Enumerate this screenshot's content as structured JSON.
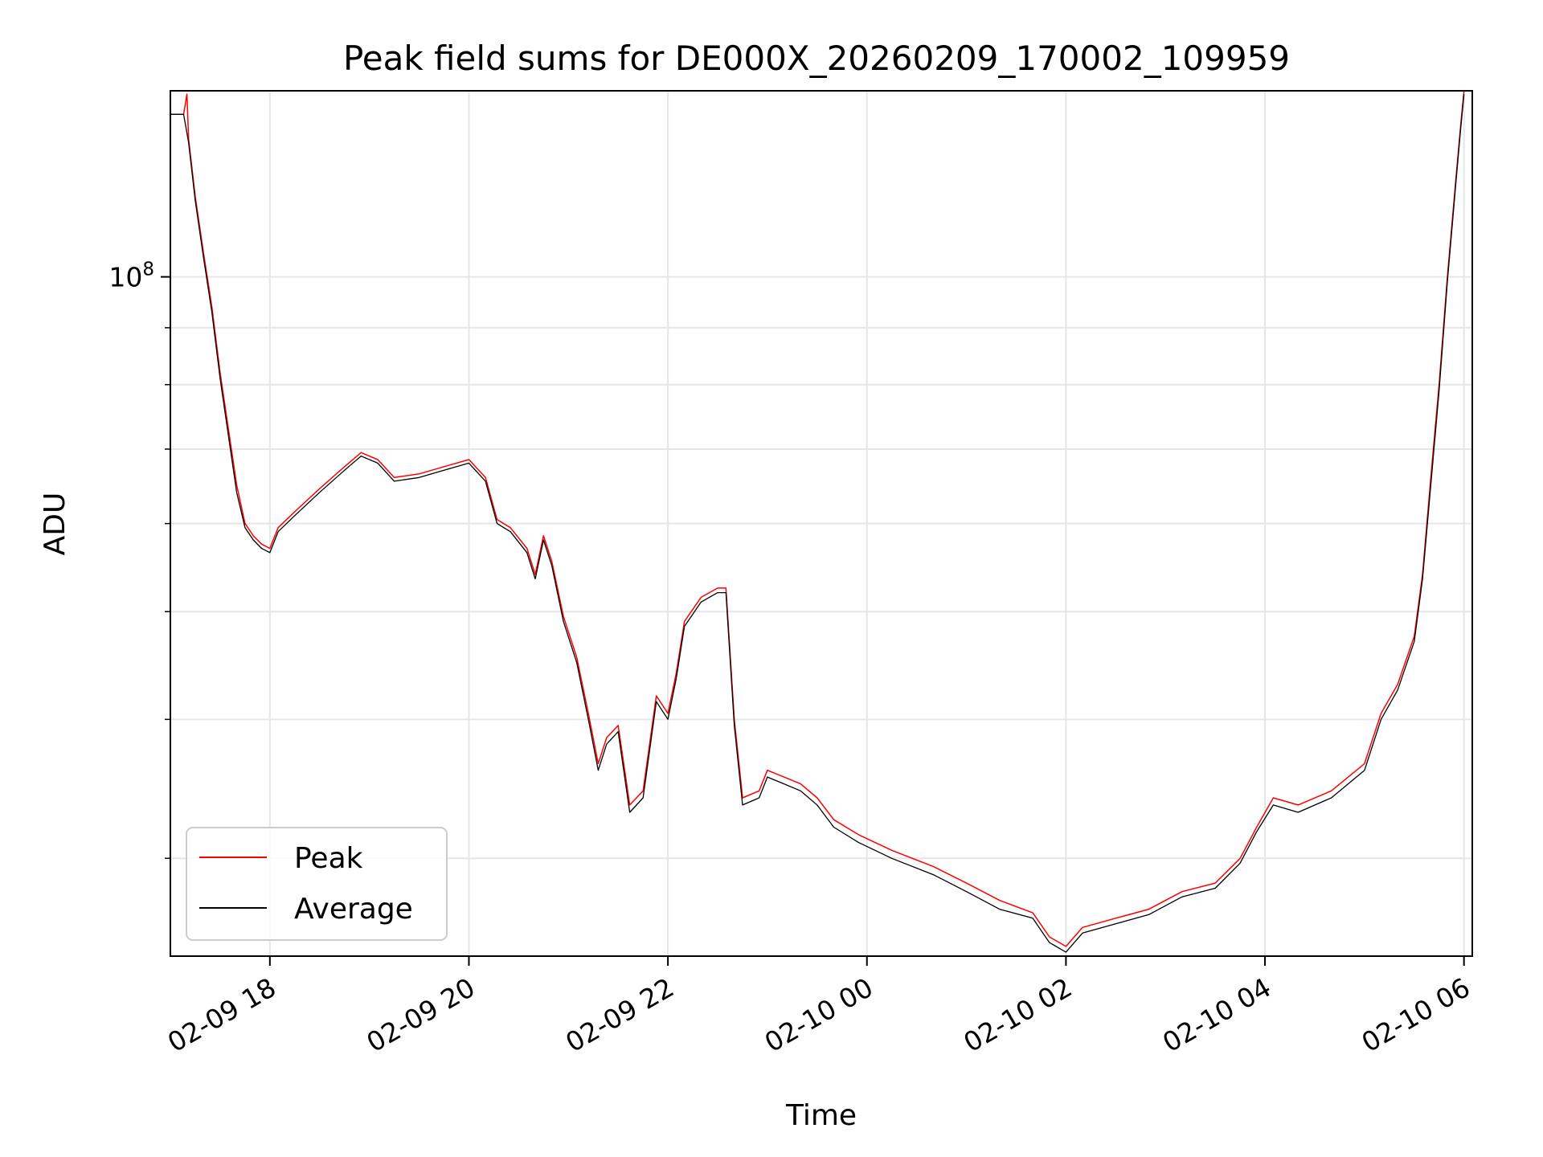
{
  "chart_data": {
    "type": "line",
    "title": "Peak field sums for DE000X_20260209_170002_109959",
    "xlabel": "Time",
    "ylabel": "ADU",
    "yscale": "log",
    "xlim": [
      "2026-02-09 17:00",
      "2026-02-10 06:05"
    ],
    "ylim": [
      24500000,
      147000000
    ],
    "x_ticks": [
      {
        "t": "2026-02-09 18:00",
        "label": "02-09 18"
      },
      {
        "t": "2026-02-09 20:00",
        "label": "02-09 20"
      },
      {
        "t": "2026-02-09 22:00",
        "label": "02-09 22"
      },
      {
        "t": "2026-02-10 00:00",
        "label": "02-10 00"
      },
      {
        "t": "2026-02-10 02:00",
        "label": "02-10 02"
      },
      {
        "t": "2026-02-10 04:00",
        "label": "02-10 04"
      },
      {
        "t": "2026-02-10 06:00",
        "label": "02-10 06"
      }
    ],
    "y_major_tick": {
      "value": 100000000,
      "label_base": "10",
      "label_exp": "8"
    },
    "y_minor_ticks": [
      30000000,
      40000000,
      50000000,
      60000000,
      70000000,
      80000000,
      90000000,
      200000000
    ],
    "grid": true,
    "legend_position": "lower-left",
    "series": [
      {
        "name": "Peak",
        "color": "#ff0000",
        "points": [
          [
            "2026-02-09 17:00",
            140000000
          ],
          [
            "2026-02-09 17:08",
            140000000
          ],
          [
            "2026-02-09 17:10",
            146000000
          ],
          [
            "2026-02-09 17:11",
            133000000
          ],
          [
            "2026-02-09 17:15",
            118000000
          ],
          [
            "2026-02-09 17:20",
            105000000
          ],
          [
            "2026-02-09 17:25",
            94000000
          ],
          [
            "2026-02-09 17:30",
            82000000
          ],
          [
            "2026-02-09 17:35",
            73000000
          ],
          [
            "2026-02-09 17:40",
            65000000
          ],
          [
            "2026-02-09 17:45",
            60000000
          ],
          [
            "2026-02-09 17:50",
            58500000
          ],
          [
            "2026-02-09 17:55",
            57500000
          ],
          [
            "2026-02-09 18:00",
            57000000
          ],
          [
            "2026-02-09 18:05",
            59500000
          ],
          [
            "2026-02-09 18:15",
            61500000
          ],
          [
            "2026-02-09 18:30",
            64500000
          ],
          [
            "2026-02-09 18:45",
            67500000
          ],
          [
            "2026-02-09 18:55",
            69500000
          ],
          [
            "2026-02-09 19:05",
            68500000
          ],
          [
            "2026-02-09 19:15",
            66000000
          ],
          [
            "2026-02-09 19:30",
            66500000
          ],
          [
            "2026-02-09 19:45",
            67500000
          ],
          [
            "2026-02-09 20:00",
            68500000
          ],
          [
            "2026-02-09 20:10",
            66000000
          ],
          [
            "2026-02-09 20:17",
            60500000
          ],
          [
            "2026-02-09 20:25",
            59500000
          ],
          [
            "2026-02-09 20:35",
            57000000
          ],
          [
            "2026-02-09 20:40",
            54000000
          ],
          [
            "2026-02-09 20:45",
            58500000
          ],
          [
            "2026-02-09 20:50",
            55500000
          ],
          [
            "2026-02-09 20:57",
            49500000
          ],
          [
            "2026-02-09 21:05",
            45500000
          ],
          [
            "2026-02-09 21:12",
            40500000
          ],
          [
            "2026-02-09 21:18",
            36500000
          ],
          [
            "2026-02-09 21:23",
            38500000
          ],
          [
            "2026-02-09 21:30",
            39500000
          ],
          [
            "2026-02-09 21:37",
            33500000
          ],
          [
            "2026-02-09 21:45",
            34500000
          ],
          [
            "2026-02-09 21:53",
            42000000
          ],
          [
            "2026-02-09 22:00",
            40500000
          ],
          [
            "2026-02-09 22:05",
            44000000
          ],
          [
            "2026-02-09 22:10",
            49000000
          ],
          [
            "2026-02-09 22:20",
            51500000
          ],
          [
            "2026-02-09 22:30",
            52500000
          ],
          [
            "2026-02-09 22:35",
            52500000
          ],
          [
            "2026-02-09 22:40",
            40000000
          ],
          [
            "2026-02-09 22:45",
            34000000
          ],
          [
            "2026-02-09 22:55",
            34500000
          ],
          [
            "2026-02-09 23:00",
            36000000
          ],
          [
            "2026-02-09 23:10",
            35500000
          ],
          [
            "2026-02-09 23:20",
            35000000
          ],
          [
            "2026-02-09 23:30",
            34000000
          ],
          [
            "2026-02-09 23:40",
            32500000
          ],
          [
            "2026-02-09 23:55",
            31500000
          ],
          [
            "2026-02-10 00:15",
            30500000
          ],
          [
            "2026-02-10 00:40",
            29500000
          ],
          [
            "2026-02-10 01:00",
            28500000
          ],
          [
            "2026-02-10 01:20",
            27500000
          ],
          [
            "2026-02-10 01:40",
            26800000
          ],
          [
            "2026-02-10 01:50",
            25500000
          ],
          [
            "2026-02-10 02:00",
            25000000
          ],
          [
            "2026-02-10 02:10",
            26000000
          ],
          [
            "2026-02-10 02:30",
            26500000
          ],
          [
            "2026-02-10 02:50",
            27000000
          ],
          [
            "2026-02-10 03:10",
            28000000
          ],
          [
            "2026-02-10 03:30",
            28500000
          ],
          [
            "2026-02-10 03:45",
            30000000
          ],
          [
            "2026-02-10 03:55",
            32000000
          ],
          [
            "2026-02-10 04:05",
            34000000
          ],
          [
            "2026-02-10 04:20",
            33500000
          ],
          [
            "2026-02-10 04:40",
            34500000
          ],
          [
            "2026-02-10 05:00",
            36500000
          ],
          [
            "2026-02-10 05:10",
            40500000
          ],
          [
            "2026-02-10 05:20",
            43000000
          ],
          [
            "2026-02-10 05:30",
            47500000
          ],
          [
            "2026-02-10 05:35",
            54000000
          ],
          [
            "2026-02-10 05:40",
            66000000
          ],
          [
            "2026-02-10 05:45",
            80000000
          ],
          [
            "2026-02-10 05:50",
            100000000
          ],
          [
            "2026-02-10 05:55",
            122000000
          ],
          [
            "2026-02-10 05:58",
            137000000
          ],
          [
            "2026-02-10 06:00",
            147000000
          ]
        ]
      },
      {
        "name": "Average",
        "color": "#000000",
        "points": [
          [
            "2026-02-09 17:00",
            140000000
          ],
          [
            "2026-02-09 17:08",
            140000000
          ],
          [
            "2026-02-09 17:11",
            132000000
          ],
          [
            "2026-02-09 17:15",
            117000000
          ],
          [
            "2026-02-09 17:20",
            104000000
          ],
          [
            "2026-02-09 17:25",
            93000000
          ],
          [
            "2026-02-09 17:30",
            81000000
          ],
          [
            "2026-02-09 17:35",
            72000000
          ],
          [
            "2026-02-09 17:40",
            64000000
          ],
          [
            "2026-02-09 17:45",
            59500000
          ],
          [
            "2026-02-09 17:50",
            58000000
          ],
          [
            "2026-02-09 17:55",
            57000000
          ],
          [
            "2026-02-09 18:00",
            56500000
          ],
          [
            "2026-02-09 18:05",
            59000000
          ],
          [
            "2026-02-09 18:15",
            61000000
          ],
          [
            "2026-02-09 18:30",
            64000000
          ],
          [
            "2026-02-09 18:45",
            67000000
          ],
          [
            "2026-02-09 18:55",
            69000000
          ],
          [
            "2026-02-09 19:05",
            68000000
          ],
          [
            "2026-02-09 19:15",
            65500000
          ],
          [
            "2026-02-09 19:30",
            66000000
          ],
          [
            "2026-02-09 19:45",
            67000000
          ],
          [
            "2026-02-09 20:00",
            68000000
          ],
          [
            "2026-02-09 20:10",
            65500000
          ],
          [
            "2026-02-09 20:17",
            60000000
          ],
          [
            "2026-02-09 20:25",
            59000000
          ],
          [
            "2026-02-09 20:35",
            56500000
          ],
          [
            "2026-02-09 20:40",
            53500000
          ],
          [
            "2026-02-09 20:45",
            58000000
          ],
          [
            "2026-02-09 20:50",
            55000000
          ],
          [
            "2026-02-09 20:57",
            49000000
          ],
          [
            "2026-02-09 21:05",
            45000000
          ],
          [
            "2026-02-09 21:12",
            40000000
          ],
          [
            "2026-02-09 21:18",
            36000000
          ],
          [
            "2026-02-09 21:23",
            38000000
          ],
          [
            "2026-02-09 21:30",
            39000000
          ],
          [
            "2026-02-09 21:37",
            33000000
          ],
          [
            "2026-02-09 21:45",
            34000000
          ],
          [
            "2026-02-09 21:53",
            41500000
          ],
          [
            "2026-02-09 22:00",
            40000000
          ],
          [
            "2026-02-09 22:05",
            43500000
          ],
          [
            "2026-02-09 22:10",
            48500000
          ],
          [
            "2026-02-09 22:20",
            51000000
          ],
          [
            "2026-02-09 22:30",
            52000000
          ],
          [
            "2026-02-09 22:35",
            52000000
          ],
          [
            "2026-02-09 22:40",
            39500000
          ],
          [
            "2026-02-09 22:45",
            33500000
          ],
          [
            "2026-02-09 22:55",
            34000000
          ],
          [
            "2026-02-09 23:00",
            35500000
          ],
          [
            "2026-02-09 23:10",
            35000000
          ],
          [
            "2026-02-09 23:20",
            34500000
          ],
          [
            "2026-02-09 23:30",
            33500000
          ],
          [
            "2026-02-09 23:40",
            32000000
          ],
          [
            "2026-02-09 23:55",
            31000000
          ],
          [
            "2026-02-10 00:15",
            30000000
          ],
          [
            "2026-02-10 00:40",
            29000000
          ],
          [
            "2026-02-10 01:00",
            28000000
          ],
          [
            "2026-02-10 01:20",
            27000000
          ],
          [
            "2026-02-10 01:40",
            26500000
          ],
          [
            "2026-02-10 01:50",
            25200000
          ],
          [
            "2026-02-10 02:00",
            24700000
          ],
          [
            "2026-02-10 02:10",
            25700000
          ],
          [
            "2026-02-10 02:30",
            26200000
          ],
          [
            "2026-02-10 02:50",
            26700000
          ],
          [
            "2026-02-10 03:10",
            27700000
          ],
          [
            "2026-02-10 03:30",
            28200000
          ],
          [
            "2026-02-10 03:45",
            29700000
          ],
          [
            "2026-02-10 03:55",
            31700000
          ],
          [
            "2026-02-10 04:05",
            33500000
          ],
          [
            "2026-02-10 04:20",
            33000000
          ],
          [
            "2026-02-10 04:40",
            34000000
          ],
          [
            "2026-02-10 05:00",
            36000000
          ],
          [
            "2026-02-10 05:10",
            40000000
          ],
          [
            "2026-02-10 05:20",
            42500000
          ],
          [
            "2026-02-10 05:30",
            47000000
          ],
          [
            "2026-02-10 05:35",
            53500000
          ],
          [
            "2026-02-10 05:40",
            65000000
          ],
          [
            "2026-02-10 05:45",
            79000000
          ],
          [
            "2026-02-10 05:50",
            99000000
          ],
          [
            "2026-02-10 05:55",
            121000000
          ],
          [
            "2026-02-10 05:58",
            136000000
          ],
          [
            "2026-02-10 06:00",
            146000000
          ]
        ]
      }
    ]
  }
}
